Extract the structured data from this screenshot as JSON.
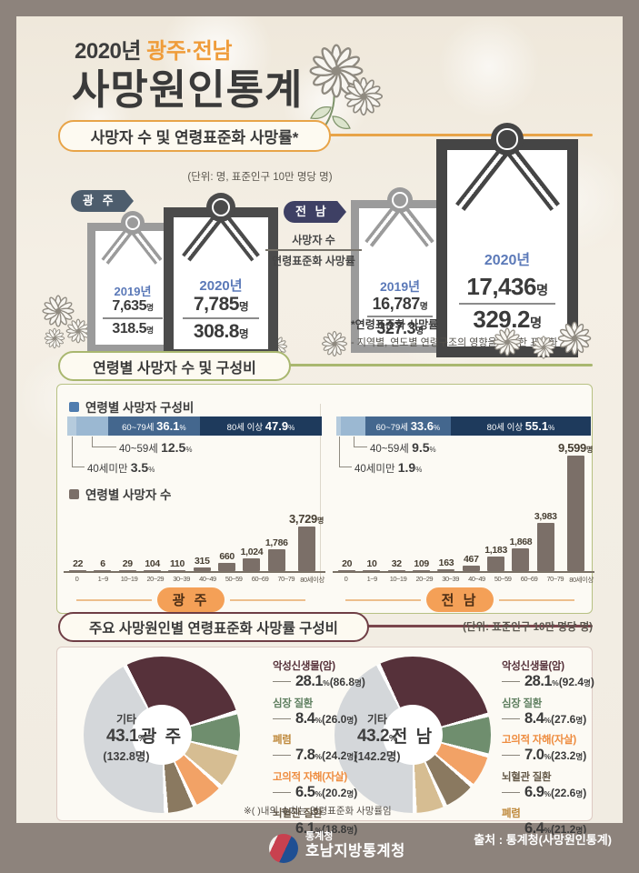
{
  "units": {
    "people": "명",
    "percent": "%"
  },
  "header": {
    "year": "2020년",
    "region": "광주·전남",
    "title": "사망원인통계"
  },
  "s1": {
    "title": "사망자 수 및 연령표준화 사망률*",
    "unit": "(단위: 명, 표준인구 10만 명당 명)",
    "gwangju_badge": "광 주",
    "jeonnam_badge": "전 남",
    "legend_deaths": "사망자 수",
    "legend_rate": "연령표준화 사망률",
    "frames": {
      "g2019": {
        "year": "2019년",
        "deaths": "7,635",
        "rate": "318.5"
      },
      "g2020": {
        "year": "2020년",
        "deaths": "7,785",
        "rate": "308.8"
      },
      "j2019": {
        "year": "2019년",
        "deaths": "16,787",
        "rate": "327.3"
      },
      "j2020": {
        "year": "2020년",
        "deaths": "17,436",
        "rate": "329.2"
      }
    },
    "footnote_title": "*연령표준화 사망률",
    "footnote_desc": "- 지역별, 연도별 연령구조의 영향을 제거한 표준화 사망률"
  },
  "s2": {
    "title": "연령별 사망자 수 및 구성비",
    "legend_share": "연령별 사망자 구성비",
    "legend_count": "연령별 사망자 수",
    "gwangju_pill": "광 주",
    "jeonnam_pill": "전 남"
  },
  "s3": {
    "title": "주요 사망원인별 연령표준화 사망률 구성비",
    "unit": "(단위: 표준인구 10만 명당 명)",
    "gwangju_center": "광 주",
    "jeonnam_center": "전 남",
    "note": "※(    )내의 수치는 연령표준화 사망률임"
  },
  "footer": {
    "agency_small": "통계청",
    "agency": "호남지방통계청",
    "source": "출처 : 통계청(사망원인통계)"
  },
  "chart_data": [
    {
      "id": "gwangju_age_share",
      "type": "stacked_bar",
      "region": "광주",
      "title": "연령별 사망자 구성비",
      "segments": [
        {
          "label": "40세미만",
          "pct": 3.5,
          "pct_label": "3.5",
          "color": "#b5cbdd",
          "inline": false
        },
        {
          "label": "40~59세",
          "pct": 12.5,
          "pct_label": "12.5",
          "color": "#9bb8d2",
          "inline": false
        },
        {
          "label": "60~79세",
          "pct": 36.1,
          "pct_label": "36.1",
          "color": "#44678e",
          "inline": true
        },
        {
          "label": "80세 이상",
          "pct": 47.9,
          "pct_label": "47.9",
          "color": "#1e3a5c",
          "inline": true
        }
      ]
    },
    {
      "id": "jeonnam_age_share",
      "type": "stacked_bar",
      "region": "전남",
      "title": "연령별 사망자 구성비",
      "segments": [
        {
          "label": "40세미만",
          "pct": 1.9,
          "pct_label": "1.9",
          "color": "#b5cbdd",
          "inline": false
        },
        {
          "label": "40~59세",
          "pct": 9.5,
          "pct_label": "9.5",
          "color": "#9bb8d2",
          "inline": false
        },
        {
          "label": "60~79세",
          "pct": 33.6,
          "pct_label": "33.6",
          "color": "#44678e",
          "inline": true
        },
        {
          "label": "80세 이상",
          "pct": 55.1,
          "pct_label": "55.1",
          "color": "#1e3a5c",
          "inline": true
        }
      ]
    },
    {
      "id": "gwangju_age_deaths",
      "type": "bar",
      "region": "광주",
      "title": "연령별 사망자 수",
      "categories": [
        "0",
        "1~9",
        "10~19",
        "20~29",
        "30~39",
        "40~49",
        "50~59",
        "60~69",
        "70~79",
        "80세이상"
      ],
      "values": [
        22,
        6,
        29,
        104,
        110,
        315,
        660,
        1024,
        1786,
        3729
      ],
      "labels": [
        "22",
        "6",
        "29",
        "104",
        "110",
        "315",
        "660",
        "1,024",
        "1,786",
        "3,729"
      ],
      "ymax": 9599,
      "unit": "명",
      "bar_color": "#7b6f68"
    },
    {
      "id": "jeonnam_age_deaths",
      "type": "bar",
      "region": "전남",
      "title": "연령별 사망자 수",
      "categories": [
        "0",
        "1~9",
        "10~19",
        "20~29",
        "30~39",
        "40~49",
        "50~59",
        "60~69",
        "70~79",
        "80세이상"
      ],
      "values": [
        20,
        10,
        32,
        109,
        163,
        467,
        1183,
        1868,
        3983,
        9599
      ],
      "labels": [
        "20",
        "10",
        "32",
        "109",
        "163",
        "467",
        "1,183",
        "1,868",
        "3,983",
        "9,599"
      ],
      "ymax": 9599,
      "unit": "명",
      "bar_color": "#7b6f68"
    },
    {
      "id": "gwangju_causes",
      "type": "pie",
      "region": "광 주",
      "start_deg": -28,
      "other": {
        "label": "기타",
        "pct_label": "43.1",
        "rate": "132.8"
      },
      "slices": [
        {
          "name": "악성신생물(암)",
          "pct": 28.1,
          "pct_label": "28.1",
          "rate": "86.8",
          "color": "#56313a",
          "name_color": "#56313a"
        },
        {
          "name": "심장 질환",
          "pct": 8.4,
          "pct_label": "8.4",
          "rate": "26.0",
          "color": "#6f8e6e",
          "name_color": "#5f7f60"
        },
        {
          "name": "폐렴",
          "pct": 7.8,
          "pct_label": "7.8",
          "rate": "24.2",
          "color": "#d6bd92",
          "name_color": "#bf8a3d"
        },
        {
          "name": "고의적 자해(자살)",
          "pct": 6.5,
          "pct_label": "6.5",
          "rate": "20.2",
          "color": "#f2a266",
          "name_color": "#ee8c3f"
        },
        {
          "name": "뇌혈관 질환",
          "pct": 6.1,
          "pct_label": "6.1",
          "rate": "18.8",
          "color": "#8a7960",
          "name_color": "#645948"
        },
        {
          "name": "기타",
          "pct": 43.1,
          "pct_label": "43.1",
          "rate": "132.8",
          "color": "#d4d7da",
          "name_color": "#555555",
          "is_other": true
        }
      ]
    },
    {
      "id": "jeonnam_causes",
      "type": "pie",
      "region": "전 남",
      "start_deg": -26,
      "other": {
        "label": "기타",
        "pct_label": "43.2",
        "rate": "142.2"
      },
      "slices": [
        {
          "name": "악성신생물(암)",
          "pct": 28.1,
          "pct_label": "28.1",
          "rate": "92.4",
          "color": "#56313a",
          "name_color": "#56313a"
        },
        {
          "name": "심장 질환",
          "pct": 8.4,
          "pct_label": "8.4",
          "rate": "27.6",
          "color": "#6f8e6e",
          "name_color": "#5f7f60"
        },
        {
          "name": "고의적 자해(자살)",
          "pct": 7.0,
          "pct_label": "7.0",
          "rate": "23.2",
          "color": "#f2a266",
          "name_color": "#ee8c3f"
        },
        {
          "name": "뇌혈관 질환",
          "pct": 6.9,
          "pct_label": "6.9",
          "rate": "22.6",
          "color": "#8a7960",
          "name_color": "#645948"
        },
        {
          "name": "폐렴",
          "pct": 6.4,
          "pct_label": "6.4",
          "rate": "21.2",
          "color": "#d6bd92",
          "name_color": "#bf8a3d"
        },
        {
          "name": "기타",
          "pct": 43.2,
          "pct_label": "43.2",
          "rate": "142.2",
          "color": "#d4d7da",
          "name_color": "#555555",
          "is_other": true
        }
      ]
    }
  ]
}
